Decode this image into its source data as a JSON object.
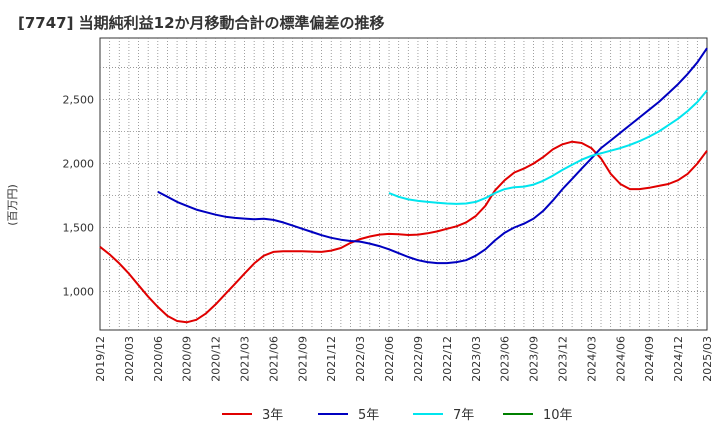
{
  "chart_data": {
    "type": "line",
    "title": "[7747]  当期純利益12か月移動合計の標準偏差の推移",
    "ylabel": "(百万円)",
    "xlabel": "",
    "ylim": [
      700,
      2980
    ],
    "yticks": [
      1000,
      1500,
      2000,
      2500
    ],
    "ytick_labels": [
      "1,000",
      "1,500",
      "2,000",
      "2,500"
    ],
    "xticks": [
      "2019/12",
      "2020/03",
      "2020/06",
      "2020/09",
      "2020/12",
      "2021/03",
      "2021/06",
      "2021/09",
      "2021/12",
      "2022/03",
      "2022/06",
      "2022/09",
      "2022/12",
      "2023/03",
      "2023/06",
      "2023/09",
      "2023/12",
      "2024/03",
      "2024/06",
      "2024/09",
      "2024/12",
      "2025/03"
    ],
    "grid": true,
    "legend_position": "bottom",
    "series": [
      {
        "name": "3年",
        "color": "#e00000",
        "points": [
          [
            "2019/12",
            1350
          ],
          [
            "2020/01",
            1290
          ],
          [
            "2020/02",
            1220
          ],
          [
            "2020/03",
            1140
          ],
          [
            "2020/04",
            1050
          ],
          [
            "2020/05",
            960
          ],
          [
            "2020/06",
            880
          ],
          [
            "2020/07",
            810
          ],
          [
            "2020/08",
            770
          ],
          [
            "2020/09",
            760
          ],
          [
            "2020/10",
            780
          ],
          [
            "2020/11",
            830
          ],
          [
            "2020/12",
            900
          ],
          [
            "2021/01",
            980
          ],
          [
            "2021/02",
            1060
          ],
          [
            "2021/03",
            1140
          ],
          [
            "2021/04",
            1220
          ],
          [
            "2021/05",
            1280
          ],
          [
            "2021/06",
            1310
          ],
          [
            "2021/07",
            1315
          ],
          [
            "2021/08",
            1315
          ],
          [
            "2021/09",
            1315
          ],
          [
            "2021/10",
            1312
          ],
          [
            "2021/11",
            1310
          ],
          [
            "2021/12",
            1320
          ],
          [
            "2022/01",
            1340
          ],
          [
            "2022/02",
            1380
          ],
          [
            "2022/03",
            1410
          ],
          [
            "2022/04",
            1430
          ],
          [
            "2022/05",
            1445
          ],
          [
            "2022/06",
            1450
          ],
          [
            "2022/07",
            1448
          ],
          [
            "2022/08",
            1442
          ],
          [
            "2022/09",
            1445
          ],
          [
            "2022/10",
            1455
          ],
          [
            "2022/11",
            1470
          ],
          [
            "2022/12",
            1490
          ],
          [
            "2022/13",
            1510
          ],
          [
            "2023/02",
            1540
          ],
          [
            "2023/03",
            1590
          ],
          [
            "2023/04",
            1670
          ],
          [
            "2023/05",
            1790
          ],
          [
            "2023/06",
            1870
          ],
          [
            "2023/07",
            1930
          ],
          [
            "2023/08",
            1960
          ],
          [
            "2023/09",
            2000
          ],
          [
            "2023/10",
            2050
          ],
          [
            "2023/11",
            2110
          ],
          [
            "2023/12",
            2150
          ],
          [
            "2023/13",
            2170
          ],
          [
            "2024/02",
            2160
          ],
          [
            "2024/03",
            2120
          ],
          [
            "2024/04",
            2040
          ],
          [
            "2024/05",
            1920
          ],
          [
            "2024/06",
            1840
          ],
          [
            "2024/07",
            1800
          ],
          [
            "2024/08",
            1800
          ],
          [
            "2024/09",
            1810
          ],
          [
            "2024/10",
            1825
          ],
          [
            "2024/11",
            1840
          ],
          [
            "2024/12",
            1870
          ],
          [
            "2024/13",
            1920
          ],
          [
            "2025/02",
            2000
          ],
          [
            "2025/03",
            2100
          ]
        ]
      },
      {
        "name": "5年",
        "color": "#0000c0",
        "points": [
          [
            "2020/06",
            1780
          ],
          [
            "2020/07",
            1740
          ],
          [
            "2020/08",
            1700
          ],
          [
            "2020/09",
            1670
          ],
          [
            "2020/10",
            1640
          ],
          [
            "2020/11",
            1620
          ],
          [
            "2020/12",
            1600
          ],
          [
            "2021/01",
            1585
          ],
          [
            "2021/02",
            1575
          ],
          [
            "2021/03",
            1570
          ],
          [
            "2021/04",
            1565
          ],
          [
            "2021/05",
            1568
          ],
          [
            "2021/06",
            1560
          ],
          [
            "2021/07",
            1540
          ],
          [
            "2021/08",
            1515
          ],
          [
            "2021/09",
            1490
          ],
          [
            "2021/10",
            1465
          ],
          [
            "2021/11",
            1440
          ],
          [
            "2021/12",
            1420
          ],
          [
            "2022/01",
            1405
          ],
          [
            "2022/02",
            1395
          ],
          [
            "2022/03",
            1390
          ],
          [
            "2022/04",
            1375
          ],
          [
            "2022/05",
            1355
          ],
          [
            "2022/06",
            1330
          ],
          [
            "2022/07",
            1300
          ],
          [
            "2022/08",
            1270
          ],
          [
            "2022/09",
            1245
          ],
          [
            "2022/10",
            1230
          ],
          [
            "2022/11",
            1222
          ],
          [
            "2022/12",
            1222
          ],
          [
            "2022/13",
            1230
          ],
          [
            "2023/02",
            1245
          ],
          [
            "2023/03",
            1280
          ],
          [
            "2023/04",
            1330
          ],
          [
            "2023/05",
            1400
          ],
          [
            "2023/06",
            1460
          ],
          [
            "2023/07",
            1500
          ],
          [
            "2023/08",
            1530
          ],
          [
            "2023/09",
            1570
          ],
          [
            "2023/10",
            1630
          ],
          [
            "2023/11",
            1710
          ],
          [
            "2023/12",
            1800
          ],
          [
            "2023/13",
            1880
          ],
          [
            "2024/02",
            1960
          ],
          [
            "2024/03",
            2040
          ],
          [
            "2024/04",
            2120
          ],
          [
            "2024/05",
            2180
          ],
          [
            "2024/06",
            2240
          ],
          [
            "2024/07",
            2300
          ],
          [
            "2024/08",
            2360
          ],
          [
            "2024/09",
            2420
          ],
          [
            "2024/10",
            2480
          ],
          [
            "2024/11",
            2550
          ],
          [
            "2024/12",
            2620
          ],
          [
            "2024/13",
            2700
          ],
          [
            "2025/02",
            2790
          ],
          [
            "2025/03",
            2900
          ]
        ]
      },
      {
        "name": "7年",
        "color": "#00e5ee",
        "points": [
          [
            "2022/06",
            1770
          ],
          [
            "2022/07",
            1740
          ],
          [
            "2022/08",
            1720
          ],
          [
            "2022/09",
            1708
          ],
          [
            "2022/10",
            1700
          ],
          [
            "2022/11",
            1693
          ],
          [
            "2022/12",
            1688
          ],
          [
            "2022/13",
            1685
          ],
          [
            "2023/02",
            1688
          ],
          [
            "2023/03",
            1700
          ],
          [
            "2023/04",
            1730
          ],
          [
            "2023/05",
            1770
          ],
          [
            "2023/06",
            1800
          ],
          [
            "2023/07",
            1815
          ],
          [
            "2023/08",
            1820
          ],
          [
            "2023/09",
            1835
          ],
          [
            "2023/10",
            1865
          ],
          [
            "2023/11",
            1905
          ],
          [
            "2023/12",
            1950
          ],
          [
            "2023/13",
            1990
          ],
          [
            "2024/02",
            2030
          ],
          [
            "2024/03",
            2060
          ],
          [
            "2024/04",
            2080
          ],
          [
            "2024/05",
            2100
          ],
          [
            "2024/06",
            2120
          ],
          [
            "2024/07",
            2145
          ],
          [
            "2024/08",
            2175
          ],
          [
            "2024/09",
            2210
          ],
          [
            "2024/10",
            2250
          ],
          [
            "2024/11",
            2300
          ],
          [
            "2024/12",
            2350
          ],
          [
            "2024/13",
            2410
          ],
          [
            "2025/02",
            2480
          ],
          [
            "2025/03",
            2570
          ]
        ]
      },
      {
        "name": "10年",
        "color": "#008000",
        "points": []
      }
    ]
  }
}
